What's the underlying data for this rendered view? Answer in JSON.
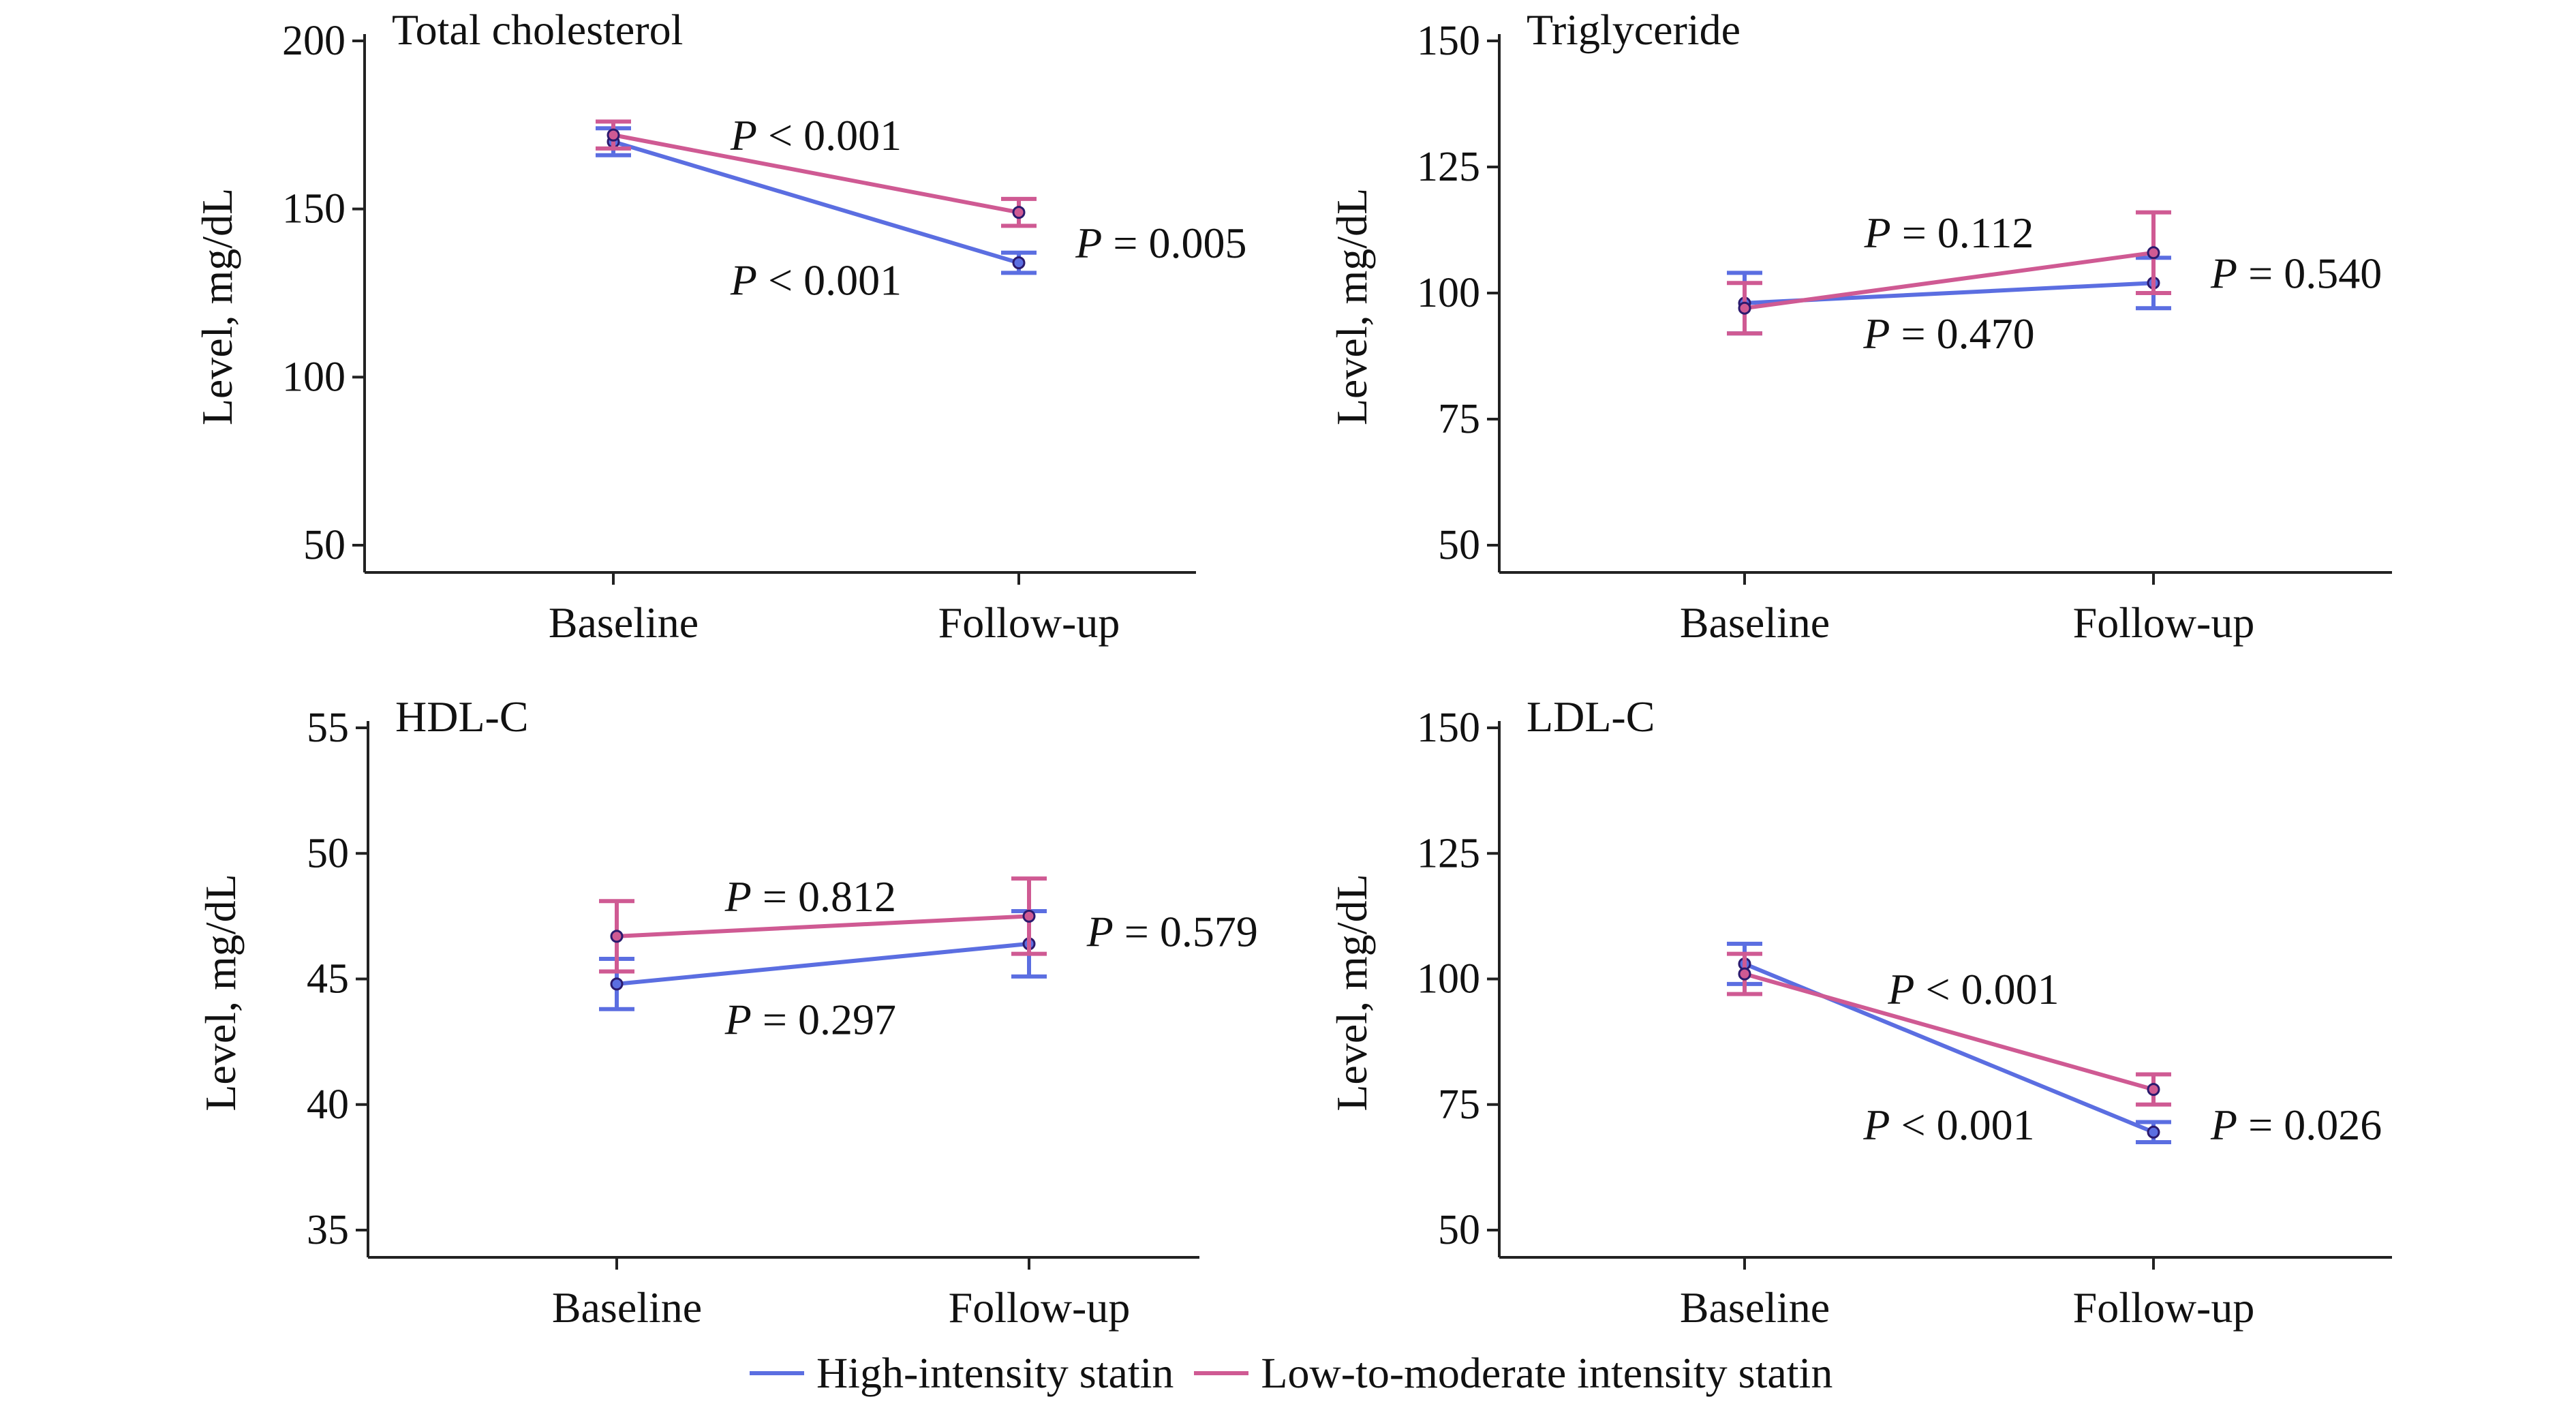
{
  "colors": {
    "high": "#5b6ee1",
    "low": "#cf5a93",
    "marker": "#2b1a6e",
    "axis": "#222222"
  },
  "legend": {
    "high_label": "High-intensity statin",
    "low_label": "Low-to-moderate intensity statin"
  },
  "chart_data": [
    {
      "type": "line",
      "title": "Total cholesterol",
      "ylabel": "Level, mg/dL",
      "categories": [
        "Baseline",
        "Follow-up"
      ],
      "ylim": [
        45,
        200
      ],
      "yticks": [
        50,
        100,
        150,
        200
      ],
      "series": [
        {
          "key": "high",
          "name": "High-intensity statin",
          "values": [
            170,
            134
          ],
          "err": [
            4,
            3
          ]
        },
        {
          "key": "low",
          "name": "Low-to-moderate intensity statin",
          "values": [
            172,
            149
          ],
          "err": [
            4,
            4
          ]
        }
      ],
      "annotations": [
        {
          "text": "P < 0.001",
          "x": 0.5,
          "y": 172
        },
        {
          "text": "P < 0.001",
          "x": 0.5,
          "y": 129
        },
        {
          "text": "P = 0.005",
          "x": 1.14,
          "y": 140
        }
      ]
    },
    {
      "type": "line",
      "title": "Triglyceride",
      "ylabel": "Level, mg/dL",
      "categories": [
        "Baseline",
        "Follow-up"
      ],
      "ylim": [
        45,
        150
      ],
      "yticks": [
        50,
        75,
        100,
        125,
        150
      ],
      "series": [
        {
          "key": "high",
          "name": "High-intensity statin",
          "values": [
            98,
            102
          ],
          "err": [
            6,
            5
          ]
        },
        {
          "key": "low",
          "name": "Low-to-moderate intensity statin",
          "values": [
            97,
            108
          ],
          "err": [
            5,
            8
          ]
        }
      ],
      "annotations": [
        {
          "text": "P = 0.112",
          "x": 0.5,
          "y": 112
        },
        {
          "text": "P = 0.470",
          "x": 0.5,
          "y": 92
        },
        {
          "text": "P = 0.540",
          "x": 1.14,
          "y": 104
        }
      ]
    },
    {
      "type": "line",
      "title": "HDL-C",
      "ylabel": "Level, mg/dL",
      "categories": [
        "Baseline",
        "Follow-up"
      ],
      "ylim": [
        34,
        55
      ],
      "yticks": [
        35,
        40,
        45,
        50,
        55
      ],
      "series": [
        {
          "key": "high",
          "name": "High-intensity statin",
          "values": [
            44.8,
            46.4
          ],
          "err": [
            1,
            1.3
          ]
        },
        {
          "key": "low",
          "name": "Low-to-moderate intensity statin",
          "values": [
            46.7,
            47.5
          ],
          "err": [
            1.4,
            1.5
          ]
        }
      ],
      "annotations": [
        {
          "text": "P = 0.812",
          "x": 0.47,
          "y": 48.3
        },
        {
          "text": "P = 0.297",
          "x": 0.47,
          "y": 43.4
        },
        {
          "text": "P = 0.579",
          "x": 1.14,
          "y": 46.9
        }
      ]
    },
    {
      "type": "line",
      "title": "LDL-C",
      "ylabel": "Level, mg/dL",
      "categories": [
        "Baseline",
        "Follow-up"
      ],
      "ylim": [
        45,
        150
      ],
      "yticks": [
        50,
        75,
        100,
        125,
        150
      ],
      "series": [
        {
          "key": "high",
          "name": "High-intensity statin",
          "values": [
            103,
            69.5
          ],
          "err": [
            4,
            2
          ]
        },
        {
          "key": "low",
          "name": "Low-to-moderate intensity statin",
          "values": [
            101,
            78
          ],
          "err": [
            4,
            3
          ]
        }
      ],
      "annotations": [
        {
          "text": "P < 0.001",
          "x": 0.56,
          "y": 98
        },
        {
          "text": "P < 0.001",
          "x": 0.5,
          "y": 71
        },
        {
          "text": "P = 0.026",
          "x": 1.14,
          "y": 71
        }
      ]
    }
  ]
}
